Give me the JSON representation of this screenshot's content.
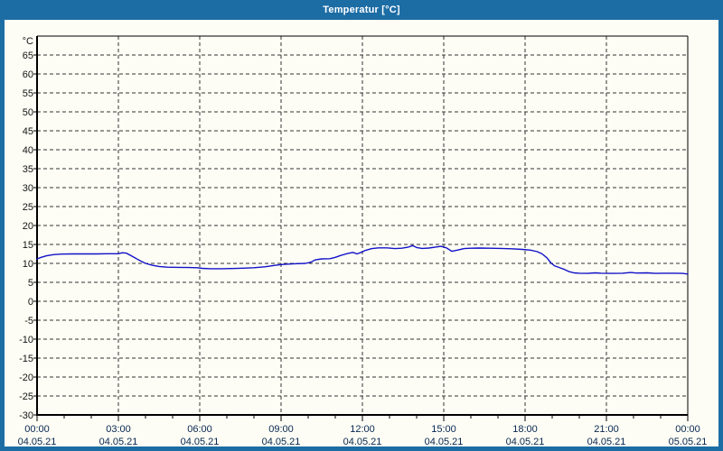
{
  "window": {
    "title": "Temperatur [°C]"
  },
  "colors": {
    "titlebar_bg": "#1d6da5",
    "titlebar_text": "#ffffff",
    "window_border": "#1d6da5",
    "content_bg": "#fdfdf5",
    "grid": "#333333",
    "axis": "#000000",
    "y_label_text": "#141414",
    "x_label_text": "#07264f",
    "series_line": "#1212c8"
  },
  "chart_data": {
    "type": "line",
    "title": "Temperatur [°C]",
    "y_unit": "°C",
    "ylim": [
      -30,
      70
    ],
    "y_tick_step": 5,
    "y_ticks": [
      65,
      60,
      55,
      50,
      45,
      40,
      35,
      30,
      25,
      20,
      15,
      10,
      5,
      0,
      -5,
      -10,
      -15,
      -20,
      -25,
      -30
    ],
    "x_range_hours": 24,
    "x_major_step_hours": 3,
    "x_minor_step_hours": 1,
    "x_ticks": [
      {
        "time": "00:00",
        "date": "04.05.21"
      },
      {
        "time": "03:00",
        "date": "04.05.21"
      },
      {
        "time": "06:00",
        "date": "04.05.21"
      },
      {
        "time": "09:00",
        "date": "04.05.21"
      },
      {
        "time": "12:00",
        "date": "04.05.21"
      },
      {
        "time": "15:00",
        "date": "04.05.21"
      },
      {
        "time": "18:00",
        "date": "04.05.21"
      },
      {
        "time": "21:00",
        "date": "04.05.21"
      },
      {
        "time": "00:00",
        "date": "05.05.21"
      }
    ],
    "grid": true,
    "legend": "none",
    "series": [
      {
        "name": "Temperatur",
        "unit": "°C",
        "points": [
          [
            0.0,
            11.2
          ],
          [
            0.15,
            11.6
          ],
          [
            0.35,
            12.0
          ],
          [
            0.6,
            12.3
          ],
          [
            0.9,
            12.45
          ],
          [
            1.3,
            12.5
          ],
          [
            1.8,
            12.5
          ],
          [
            2.2,
            12.5
          ],
          [
            2.6,
            12.55
          ],
          [
            3.0,
            12.55
          ],
          [
            3.15,
            12.8
          ],
          [
            3.3,
            12.7
          ],
          [
            3.5,
            11.9
          ],
          [
            3.75,
            10.9
          ],
          [
            4.0,
            10.0
          ],
          [
            4.25,
            9.5
          ],
          [
            4.5,
            9.2
          ],
          [
            4.8,
            9.0
          ],
          [
            5.2,
            8.95
          ],
          [
            5.6,
            8.9
          ],
          [
            5.9,
            8.85
          ],
          [
            6.1,
            8.7
          ],
          [
            6.4,
            8.6
          ],
          [
            6.8,
            8.6
          ],
          [
            7.2,
            8.65
          ],
          [
            7.6,
            8.75
          ],
          [
            8.0,
            8.85
          ],
          [
            8.4,
            9.1
          ],
          [
            8.8,
            9.5
          ],
          [
            9.1,
            9.75
          ],
          [
            9.5,
            9.9
          ],
          [
            9.9,
            10.0
          ],
          [
            10.1,
            10.3
          ],
          [
            10.25,
            10.9
          ],
          [
            10.5,
            11.2
          ],
          [
            10.8,
            11.25
          ],
          [
            11.0,
            11.6
          ],
          [
            11.2,
            12.1
          ],
          [
            11.45,
            12.6
          ],
          [
            11.65,
            12.9
          ],
          [
            11.8,
            12.5
          ],
          [
            11.95,
            12.9
          ],
          [
            12.1,
            13.4
          ],
          [
            12.35,
            13.9
          ],
          [
            12.6,
            14.1
          ],
          [
            12.9,
            14.1
          ],
          [
            13.2,
            13.9
          ],
          [
            13.45,
            14.0
          ],
          [
            13.7,
            14.3
          ],
          [
            13.85,
            14.7
          ],
          [
            14.0,
            14.2
          ],
          [
            14.2,
            13.95
          ],
          [
            14.45,
            14.05
          ],
          [
            14.7,
            14.3
          ],
          [
            14.9,
            14.5
          ],
          [
            15.1,
            14.1
          ],
          [
            15.3,
            13.2
          ],
          [
            15.5,
            13.5
          ],
          [
            15.75,
            13.9
          ],
          [
            16.0,
            14.0
          ],
          [
            16.3,
            14.05
          ],
          [
            16.7,
            14.0
          ],
          [
            17.1,
            13.95
          ],
          [
            17.5,
            13.85
          ],
          [
            17.9,
            13.7
          ],
          [
            18.2,
            13.5
          ],
          [
            18.45,
            13.1
          ],
          [
            18.63,
            12.5
          ],
          [
            18.8,
            11.5
          ],
          [
            18.97,
            10.0
          ],
          [
            19.1,
            9.3
          ],
          [
            19.3,
            8.8
          ],
          [
            19.45,
            8.4
          ],
          [
            19.63,
            7.8
          ],
          [
            19.8,
            7.5
          ],
          [
            20.0,
            7.4
          ],
          [
            20.3,
            7.35
          ],
          [
            20.6,
            7.5
          ],
          [
            20.8,
            7.4
          ],
          [
            21.2,
            7.35
          ],
          [
            21.6,
            7.4
          ],
          [
            21.9,
            7.6
          ],
          [
            22.1,
            7.45
          ],
          [
            22.5,
            7.5
          ],
          [
            22.8,
            7.35
          ],
          [
            23.1,
            7.4
          ],
          [
            23.5,
            7.4
          ],
          [
            23.8,
            7.35
          ],
          [
            24.0,
            7.2
          ]
        ]
      }
    ]
  }
}
